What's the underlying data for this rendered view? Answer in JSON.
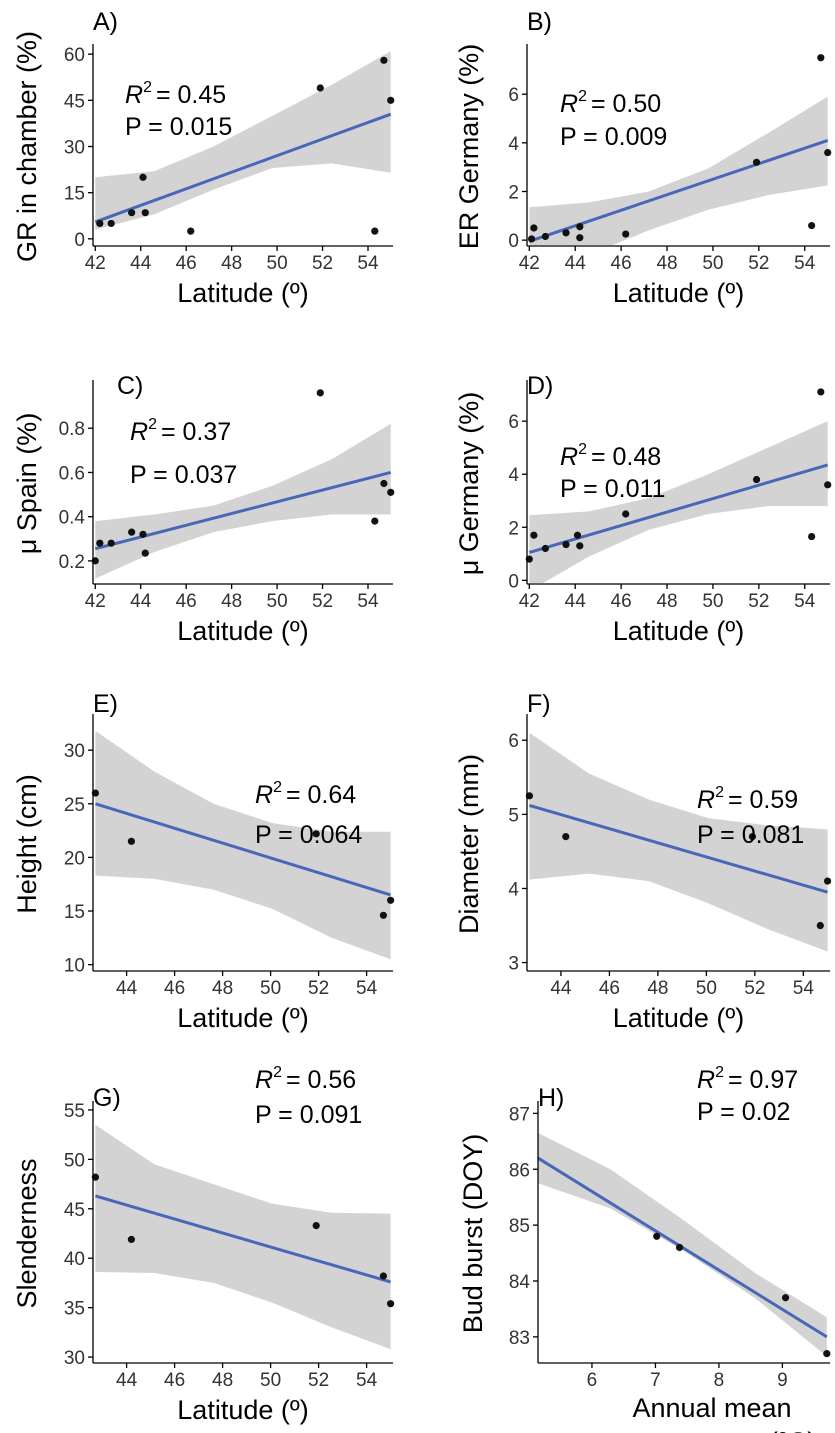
{
  "figure": {
    "panels": [
      {
        "letter": "A)",
        "r2_label": "R",
        "r2_value": "= 0.45",
        "p_value": "P = 0.015",
        "ylabel": "GR in chamber (%)",
        "xlabel": "Latitude (º)"
      },
      {
        "letter": "B)",
        "r2_label": "R",
        "r2_value": "= 0.50",
        "p_value": "P = 0.009",
        "ylabel": "ER Germany (%)",
        "xlabel": "Latitude (º)"
      },
      {
        "letter": "C)",
        "r2_label": "R",
        "r2_value": "= 0.37",
        "p_value": "P = 0.037",
        "ylabel": "μ Spain (%)",
        "xlabel": "Latitude (º)"
      },
      {
        "letter": "D)",
        "r2_label": "R",
        "r2_value": "= 0.48",
        "p_value": "P = 0.011",
        "ylabel": "μ Germany (%)",
        "xlabel": "Latitude (º)"
      },
      {
        "letter": "E)",
        "r2_label": "R",
        "r2_value": "= 0.64",
        "p_value": "P = 0.064",
        "ylabel": "Height (cm)",
        "xlabel": "Latitude (º)"
      },
      {
        "letter": "F)",
        "r2_label": "R",
        "r2_value": "= 0.59",
        "p_value": "P = 0.081",
        "ylabel": "Diameter (mm)",
        "xlabel": "Latitude (º)"
      },
      {
        "letter": "G)",
        "r2_label": "R",
        "r2_value": "= 0.56",
        "p_value": "P = 0.091",
        "ylabel": "Slenderness",
        "xlabel": "Latitude (º)"
      },
      {
        "letter": "H)",
        "r2_label": "R",
        "r2_value": "= 0.97",
        "p_value": "P = 0.02",
        "ylabel": "Bud burst (DOY)",
        "xlabel": "Annual mean",
        "xlabel2": "temperature (ºC)"
      }
    ]
  },
  "colors": {
    "fit_line": "#4867b8",
    "confidence_band": "#d3d3d3",
    "points": "#111111"
  },
  "chart_data": [
    {
      "type": "scatter",
      "panel": "A",
      "xlim": [
        41.9,
        55.1
      ],
      "ylim": [
        -2,
        62
      ],
      "xticks": [
        42,
        44,
        46,
        48,
        50,
        52,
        54
      ],
      "yticks": [
        0,
        15,
        30,
        45,
        60
      ],
      "x": [
        42.2,
        42.7,
        43.6,
        44.1,
        44.2,
        46.2,
        51.9,
        54.3,
        54.7,
        55.0
      ],
      "y": [
        5,
        5,
        8.5,
        20,
        8.5,
        2.5,
        49,
        2.5,
        58,
        45
      ],
      "fit": {
        "x0": 42,
        "y0": 5.5,
        "x1": 55,
        "y1": 40.5
      },
      "ci_lower": [
        3,
        8,
        16,
        23,
        24.5,
        21.5
      ],
      "ci_upper": [
        20,
        22,
        30,
        40,
        50,
        61
      ],
      "ci_x": [
        42,
        44.6,
        47.2,
        49.8,
        52.4,
        55
      ]
    },
    {
      "type": "scatter",
      "panel": "B",
      "xlim": [
        41.9,
        55.1
      ],
      "ylim": [
        -0.2,
        7.9
      ],
      "xticks": [
        42,
        44,
        46,
        48,
        50,
        52,
        54
      ],
      "yticks": [
        0,
        2,
        4,
        6
      ],
      "x": [
        42.1,
        42.2,
        42.7,
        43.6,
        44.2,
        44.2,
        46.2,
        51.9,
        54.3,
        54.7,
        55.0
      ],
      "y": [
        0.05,
        0.5,
        0.15,
        0.3,
        0.55,
        0.1,
        0.25,
        3.2,
        0.6,
        7.5,
        3.6
      ],
      "fit": {
        "x0": 42,
        "y0": -0.05,
        "x1": 55,
        "y1": 4.1
      },
      "ci_lower": [
        -1.5,
        -0.6,
        0.4,
        1.25,
        1.85,
        2.25
      ],
      "ci_upper": [
        1.35,
        1.55,
        2.0,
        2.95,
        4.4,
        5.9
      ],
      "ci_x": [
        42,
        44.6,
        47.2,
        49.8,
        52.4,
        55
      ]
    },
    {
      "type": "scatter",
      "panel": "C",
      "xlim": [
        41.9,
        55.1
      ],
      "ylim": [
        0.1,
        1.0
      ],
      "xticks": [
        42,
        44,
        46,
        48,
        50,
        52,
        54
      ],
      "yticks": [
        0.2,
        0.4,
        0.6,
        0.8
      ],
      "x": [
        42.0,
        42.2,
        42.7,
        43.6,
        44.1,
        44.2,
        51.9,
        54.3,
        54.7,
        55.0
      ],
      "y": [
        0.2,
        0.28,
        0.28,
        0.33,
        0.32,
        0.235,
        0.96,
        0.38,
        0.55,
        0.51
      ],
      "fit": {
        "x0": 42,
        "y0": 0.255,
        "x1": 55,
        "y1": 0.6
      },
      "ci_lower": [
        0.12,
        0.24,
        0.33,
        0.38,
        0.41,
        0.41
      ],
      "ci_upper": [
        0.38,
        0.41,
        0.45,
        0.54,
        0.66,
        0.82
      ],
      "ci_x": [
        42,
        44.6,
        47.2,
        49.8,
        52.4,
        55
      ]
    },
    {
      "type": "scatter",
      "panel": "D",
      "xlim": [
        41.9,
        55.1
      ],
      "ylim": [
        -0.1,
        7.4
      ],
      "xticks": [
        42,
        44,
        46,
        48,
        50,
        52,
        54
      ],
      "yticks": [
        0,
        2,
        4,
        6
      ],
      "x": [
        42.0,
        42.2,
        42.7,
        43.6,
        44.1,
        44.2,
        46.2,
        51.9,
        54.3,
        54.7,
        55.0
      ],
      "y": [
        0.8,
        1.7,
        1.2,
        1.35,
        1.7,
        1.3,
        2.5,
        3.8,
        1.65,
        7.1,
        3.6
      ],
      "fit": {
        "x0": 42,
        "y0": 1.05,
        "x1": 55,
        "y1": 4.35
      },
      "ci_lower": [
        -0.4,
        0.9,
        1.9,
        2.5,
        2.8,
        2.8
      ],
      "ci_upper": [
        2.45,
        2.6,
        3.1,
        4.0,
        5.0,
        6.0
      ],
      "ci_x": [
        42,
        44.6,
        47.2,
        49.8,
        52.4,
        55
      ]
    },
    {
      "type": "scatter",
      "panel": "E",
      "xlim": [
        42.6,
        55.1
      ],
      "ylim": [
        9.5,
        33
      ],
      "xticks": [
        44,
        46,
        48,
        50,
        52,
        54
      ],
      "yticks": [
        10,
        15,
        20,
        25,
        30
      ],
      "x": [
        42.7,
        44.2,
        51.9,
        54.7,
        55.0
      ],
      "y": [
        26,
        21.5,
        22.2,
        14.6,
        16
      ],
      "fit": {
        "x0": 42.7,
        "y0": 25,
        "x1": 55,
        "y1": 16.5
      },
      "ci_lower": [
        18.3,
        18.0,
        17.0,
        15.2,
        12.5,
        10.5
      ],
      "ci_upper": [
        31.8,
        28.0,
        25.0,
        23.2,
        22.4,
        22.4
      ],
      "ci_x": [
        42.7,
        45.16,
        47.62,
        50.08,
        52.54,
        55
      ]
    },
    {
      "type": "scatter",
      "panel": "F",
      "xlim": [
        42.6,
        55.1
      ],
      "ylim": [
        2.9,
        6.3
      ],
      "xticks": [
        44,
        46,
        48,
        50,
        52,
        54
      ],
      "yticks": [
        3,
        4,
        5,
        6
      ],
      "x": [
        42.7,
        44.2,
        51.9,
        54.7,
        55.0
      ],
      "y": [
        5.25,
        4.7,
        4.7,
        3.5,
        4.1
      ],
      "fit": {
        "x0": 42.7,
        "y0": 5.12,
        "x1": 55,
        "y1": 3.95
      },
      "ci_lower": [
        4.12,
        4.2,
        4.1,
        3.8,
        3.45,
        3.15
      ],
      "ci_upper": [
        6.1,
        5.55,
        5.2,
        4.95,
        4.85,
        4.8
      ],
      "ci_x": [
        42.7,
        45.16,
        47.62,
        50.08,
        52.54,
        55
      ]
    },
    {
      "type": "scatter",
      "panel": "G",
      "xlim": [
        42.6,
        55.1
      ],
      "ylim": [
        29.5,
        55.5
      ],
      "xticks": [
        44,
        46,
        48,
        50,
        52,
        54
      ],
      "yticks": [
        30,
        35,
        40,
        45,
        50,
        55
      ],
      "x": [
        42.7,
        44.2,
        51.9,
        54.7,
        55.0
      ],
      "y": [
        48.2,
        41.9,
        43.3,
        38.2,
        35.4
      ],
      "fit": {
        "x0": 42.7,
        "y0": 46.3,
        "x1": 55,
        "y1": 37.6
      },
      "ci_lower": [
        38.6,
        38.5,
        37.5,
        35.5,
        33.0,
        30.8
      ],
      "ci_upper": [
        53.5,
        49.5,
        47.5,
        45.5,
        44.6,
        44.5
      ],
      "ci_x": [
        42.7,
        45.16,
        47.62,
        50.08,
        52.54,
        55
      ]
    },
    {
      "type": "scatter",
      "panel": "H",
      "xlim": [
        5.15,
        9.75
      ],
      "ylim": [
        82.55,
        87.15
      ],
      "xticks": [
        6,
        7,
        8,
        9
      ],
      "yticks": [
        83,
        84,
        85,
        86,
        87
      ],
      "x": [
        7.02,
        7.38,
        9.05,
        9.7
      ],
      "y": [
        84.8,
        84.6,
        83.7,
        82.7
      ],
      "fit": {
        "x0": 5.15,
        "y0": 86.2,
        "x1": 9.7,
        "y1": 83.0
      },
      "ci_lower": [
        85.75,
        85.3,
        84.55,
        83.7,
        82.65
      ],
      "ci_upper": [
        86.65,
        86.0,
        85.1,
        84.15,
        83.35
      ],
      "ci_x": [
        5.15,
        6.29,
        7.43,
        8.56,
        9.7
      ]
    }
  ]
}
